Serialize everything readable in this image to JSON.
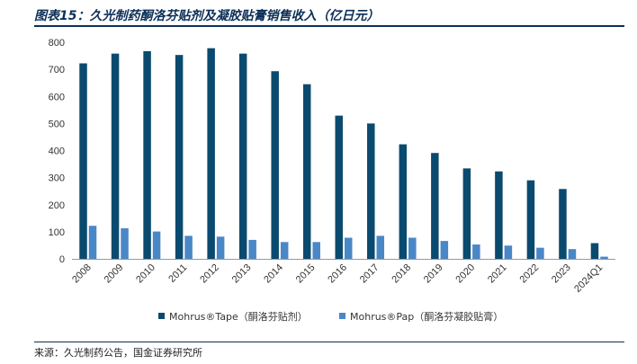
{
  "header": {
    "title": "图表15：久光制药酮洛芬贴剂及凝胶贴膏销售收入（亿日元）"
  },
  "footer": {
    "source": "来源：久光制药公告，国金证券研究所"
  },
  "colors": {
    "tape": "#0b4a6f",
    "pap": "#4a87c7",
    "rule": "#0c2f57"
  },
  "chart_data": {
    "type": "bar",
    "categories": [
      "2008",
      "2009",
      "2010",
      "2011",
      "2012",
      "2013",
      "2014",
      "2015",
      "2016",
      "2017",
      "2018",
      "2019",
      "2020",
      "2021",
      "2022",
      "2023",
      "2024Q1"
    ],
    "series": [
      {
        "name": "Mohrus®Tape（酮洛芬贴剂）",
        "values": [
          722,
          758,
          767,
          753,
          778,
          758,
          693,
          645,
          529,
          500,
          423,
          391,
          334,
          323,
          290,
          258,
          58
        ]
      },
      {
        "name": "Mohrus®Pap（酮洛芬凝胶贴膏）",
        "values": [
          122,
          113,
          101,
          85,
          82,
          70,
          62,
          62,
          78,
          85,
          78,
          66,
          53,
          49,
          41,
          36,
          8
        ]
      }
    ],
    "yticks": [
      0,
      100,
      200,
      300,
      400,
      500,
      600,
      700,
      800
    ],
    "ylim": [
      0,
      800
    ],
    "legend_position": "bottom",
    "grid": false
  }
}
